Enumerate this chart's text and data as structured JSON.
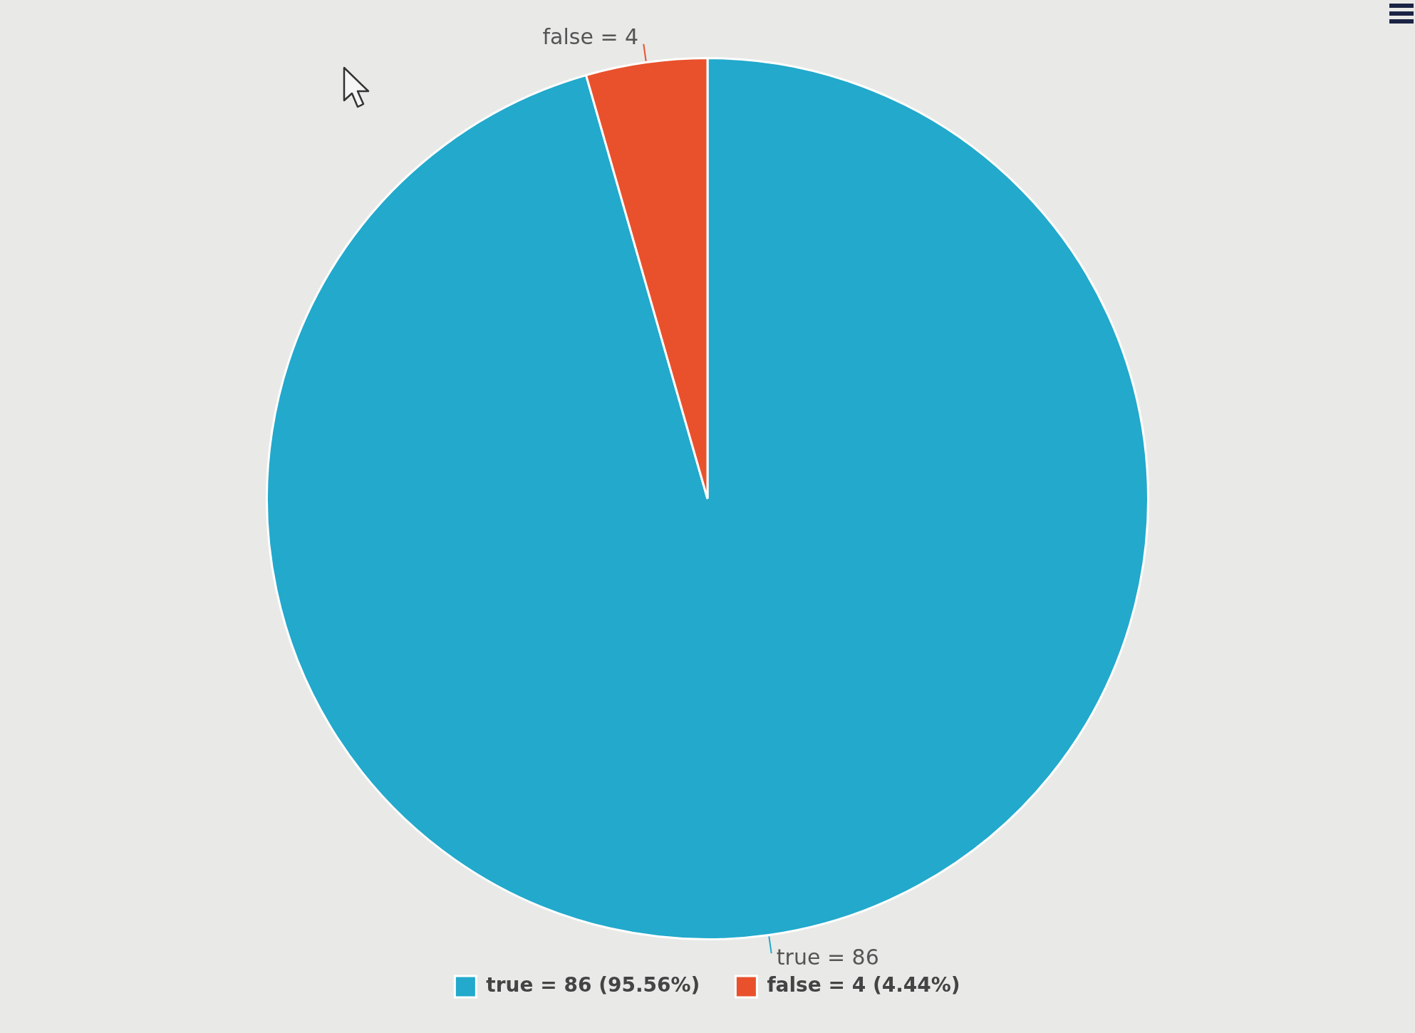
{
  "chart_data": {
    "type": "pie",
    "categories": [
      "true = 86 (95.56%)",
      "false = 4 (4.44%)"
    ],
    "values": [
      86,
      4
    ],
    "colors": [
      "#22a9cc",
      "#e9512c"
    ],
    "value_labels": [
      "true = 86",
      "false = 4"
    ],
    "legend": "bottom"
  }
}
